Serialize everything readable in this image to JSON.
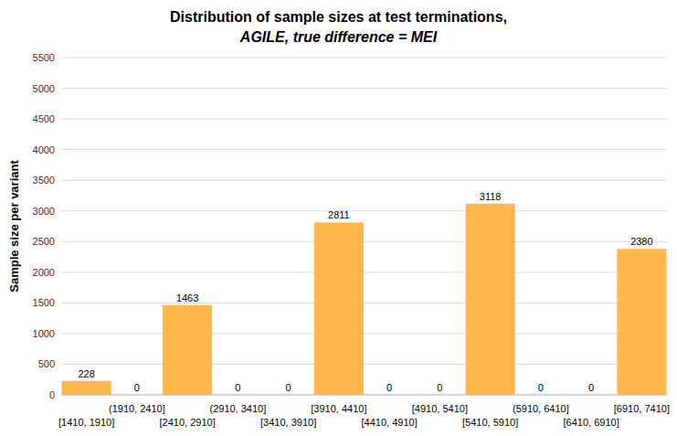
{
  "chart_data": {
    "type": "bar",
    "title": "Distribution of sample sizes at test terminations,",
    "subtitle": "AGILE, true difference = MEI",
    "y_label": "Sample size per variant",
    "categories": [
      "[1410, 1910]",
      "(1910, 2410]",
      "[2410, 2910]",
      "(2910, 3410]",
      "[3410, 3910]",
      "[3910, 4410]",
      "[4410, 4910]",
      "[4910, 5410]",
      "[5410, 5910]",
      "(5910, 6410]",
      "[6410, 6910]",
      "[6910, 7410]"
    ],
    "values": [
      228,
      0,
      1463,
      0,
      0,
      2811,
      0,
      0,
      3118,
      0,
      0,
      2380
    ],
    "color": "#fdb74b",
    "ylim": [
      0,
      5500
    ],
    "yticks": [
      0,
      500,
      1000,
      1500,
      2000,
      2500,
      3000,
      3500,
      4000,
      4500,
      5000,
      5500
    ],
    "grid": true,
    "data_labels": true
  }
}
